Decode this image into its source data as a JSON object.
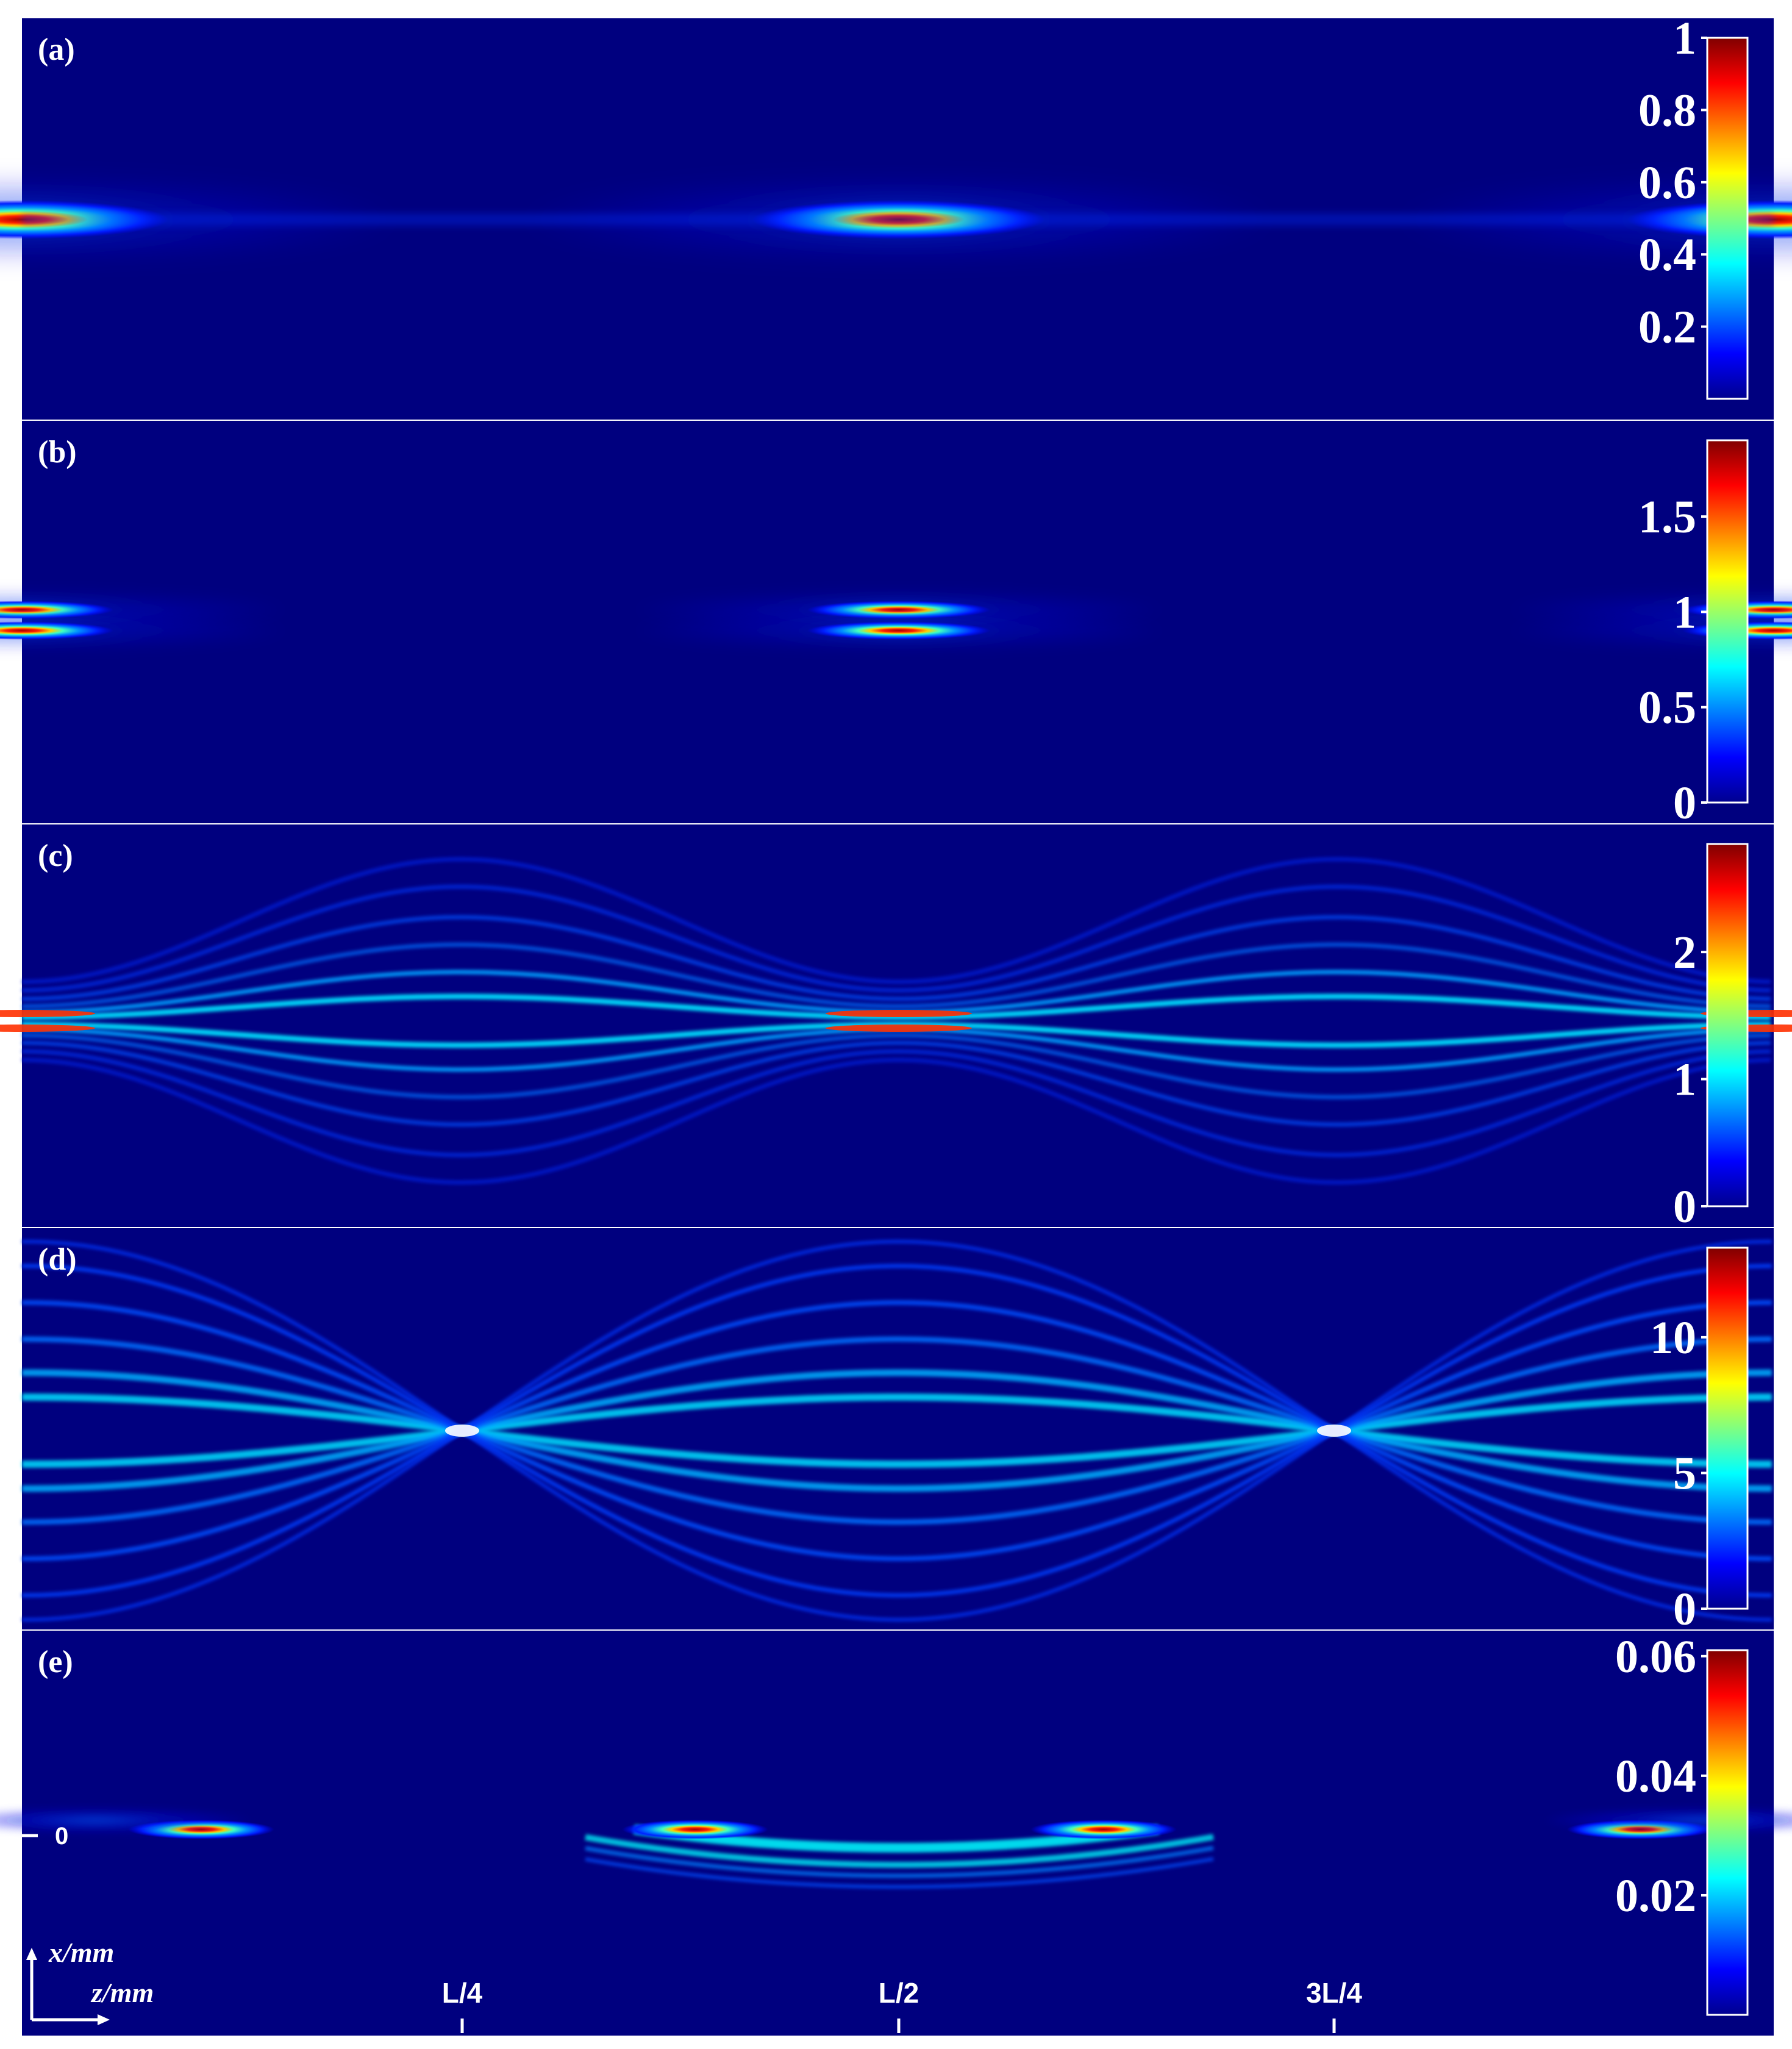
{
  "chart_data": [
    {
      "type": "heatmap",
      "panel_label": "(a)",
      "colorbar": {
        "ticks": [
          "0.2",
          "0.4",
          "0.6",
          "0.8",
          "1"
        ],
        "tick_values": [
          0.2,
          0.4,
          0.6,
          0.8,
          1.0
        ],
        "range": [
          0,
          1.0
        ]
      },
      "beam": {
        "pattern": "single-lobe",
        "x_center": 0,
        "focus_z": [
          "0",
          "L/2",
          "L"
        ]
      }
    },
    {
      "type": "heatmap",
      "panel_label": "(b)",
      "colorbar": {
        "ticks": [
          "0",
          "0.5",
          "1",
          "1.5"
        ],
        "tick_values": [
          0,
          0.5,
          1.0,
          1.5
        ],
        "range": [
          0,
          1.9
        ]
      },
      "beam": {
        "pattern": "two-lobe",
        "x_center": 0,
        "focus_z": [
          "0",
          "L/2",
          "L"
        ]
      }
    },
    {
      "type": "heatmap",
      "panel_label": "(c)",
      "colorbar": {
        "ticks": [
          "0",
          "1",
          "2"
        ],
        "tick_values": [
          0,
          1,
          2
        ],
        "range": [
          0,
          2.85
        ]
      },
      "beam": {
        "pattern": "multi-ring breathing",
        "x_center": 0,
        "focus_z": [
          "0",
          "L/2",
          "L"
        ]
      }
    },
    {
      "type": "heatmap",
      "panel_label": "(d)",
      "colorbar": {
        "ticks": [
          "0",
          "5",
          "10"
        ],
        "tick_values": [
          0,
          5,
          10
        ],
        "range": [
          0,
          13.3
        ]
      },
      "beam": {
        "pattern": "crossing fringes",
        "x_center": 0,
        "focus_z": [
          "L/4",
          "3L/4"
        ]
      }
    },
    {
      "type": "heatmap",
      "panel_label": "(e)",
      "colorbar": {
        "ticks": [
          "0.02",
          "0.04",
          "0.06"
        ],
        "tick_values": [
          0.02,
          0.04,
          0.06
        ],
        "range": [
          0,
          0.061
        ]
      },
      "beam": {
        "pattern": "arc trajectory",
        "x_center": 0,
        "focus_z": [
          "0",
          "L/2",
          "L"
        ]
      },
      "y_tick": "0"
    }
  ],
  "axes": {
    "x_arrow_label": "z/mm",
    "y_arrow_label": "x/mm",
    "z_ticks": [
      "L/4",
      "L/2",
      "3L/4"
    ],
    "z_tick_values": [
      0.25,
      0.5,
      0.75
    ]
  },
  "colors": {
    "background": "#00007f",
    "colormap": [
      "#00008f",
      "#0000ff",
      "#0080ff",
      "#00ffff",
      "#80ff80",
      "#ffff00",
      "#ff8000",
      "#ff0000",
      "#800000"
    ]
  }
}
